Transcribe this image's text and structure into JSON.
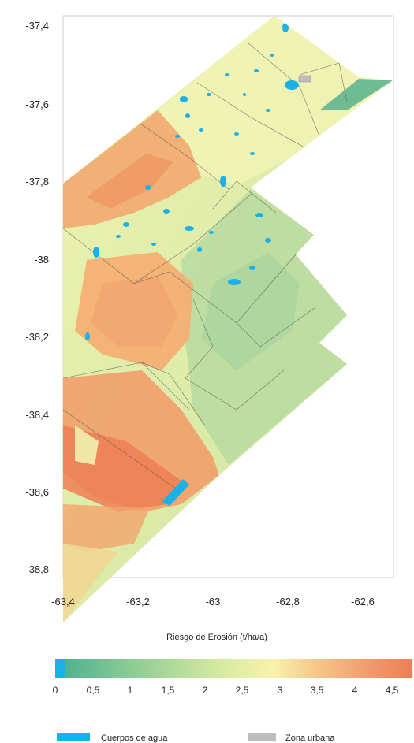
{
  "map": {
    "y_ticks": [
      "-37,4",
      "-37,6",
      "-37,8",
      "-38",
      "-38,2",
      "-38,4",
      "-38,6",
      "-38,8"
    ],
    "x_ticks": [
      "-63,4",
      "-63,2",
      "-63",
      "-62,8",
      "-62,6"
    ]
  },
  "legend": {
    "title": "Riesgo de Erosión (t/ha/a)",
    "colorbar_ticks": [
      "0",
      "0,5",
      "1",
      "1,5",
      "2",
      "2,5",
      "3",
      "3,5",
      "4",
      "4,5"
    ],
    "colorbar_min": 0,
    "colorbar_max": 4.7,
    "colors": {
      "water": "#1ab0e8",
      "low": "#4fb28f",
      "mid": "#e8f0a3",
      "high": "#ee7e55",
      "urban": "#bdbdbd"
    },
    "items": [
      {
        "label": "Cuerpos de agua",
        "color": "#1ab0e8"
      },
      {
        "label": "Zona urbana",
        "color": "#bdbdbd"
      }
    ]
  }
}
